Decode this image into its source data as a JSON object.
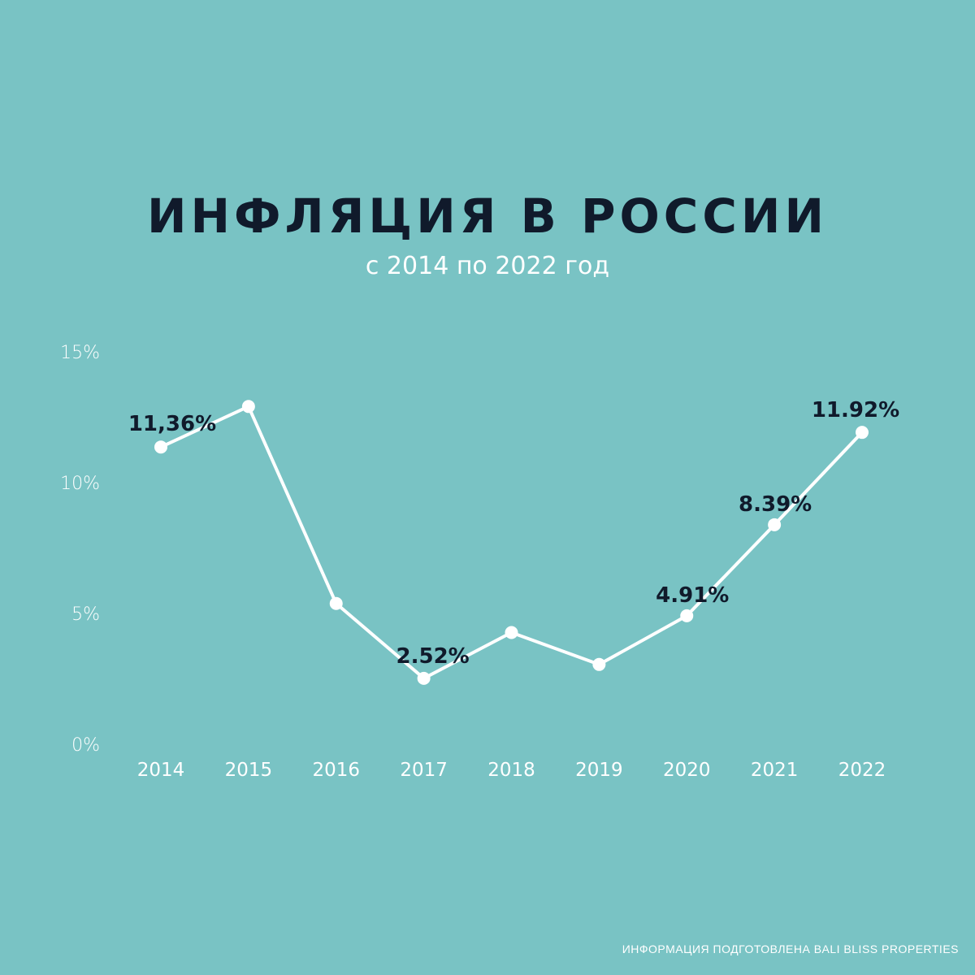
{
  "colors": {
    "background": "#79c3c4",
    "line": "#ffffff",
    "title": "#101a2b",
    "axis_text": "#ffffff",
    "data_label": "#101a2b"
  },
  "title": "ИНФЛЯЦИЯ В РОССИИ",
  "subtitle": "с 2014 по 2022 год",
  "footer": "ИНФОРМАЦИЯ ПОДГОТОВЛЕНА BALI BLISS PROPERTIES",
  "chart_data": {
    "type": "line",
    "title": "ИНФЛЯЦИЯ В РОССИИ",
    "subtitle": "с 2014 по 2022 год",
    "xlabel": "",
    "ylabel": "",
    "categories": [
      "2014",
      "2015",
      "2016",
      "2017",
      "2018",
      "2019",
      "2020",
      "2021",
      "2022"
    ],
    "series": [
      {
        "values": [
          11.36,
          12.91,
          5.38,
          2.52,
          4.27,
          3.05,
          4.91,
          8.39,
          11.92
        ]
      }
    ],
    "data_labels": [
      {
        "index": 0,
        "text": "11,36%"
      },
      {
        "index": 3,
        "text": "2.52%"
      },
      {
        "index": 6,
        "text": "4.91%"
      },
      {
        "index": 7,
        "text": "8.39%"
      },
      {
        "index": 8,
        "text": "11.92%"
      }
    ],
    "ylim": [
      0,
      15
    ],
    "yticks": [
      0,
      5,
      10,
      15
    ],
    "ytick_labels": [
      "0%",
      "5%",
      "10%",
      "15%"
    ],
    "grid": false,
    "legend": "none"
  }
}
